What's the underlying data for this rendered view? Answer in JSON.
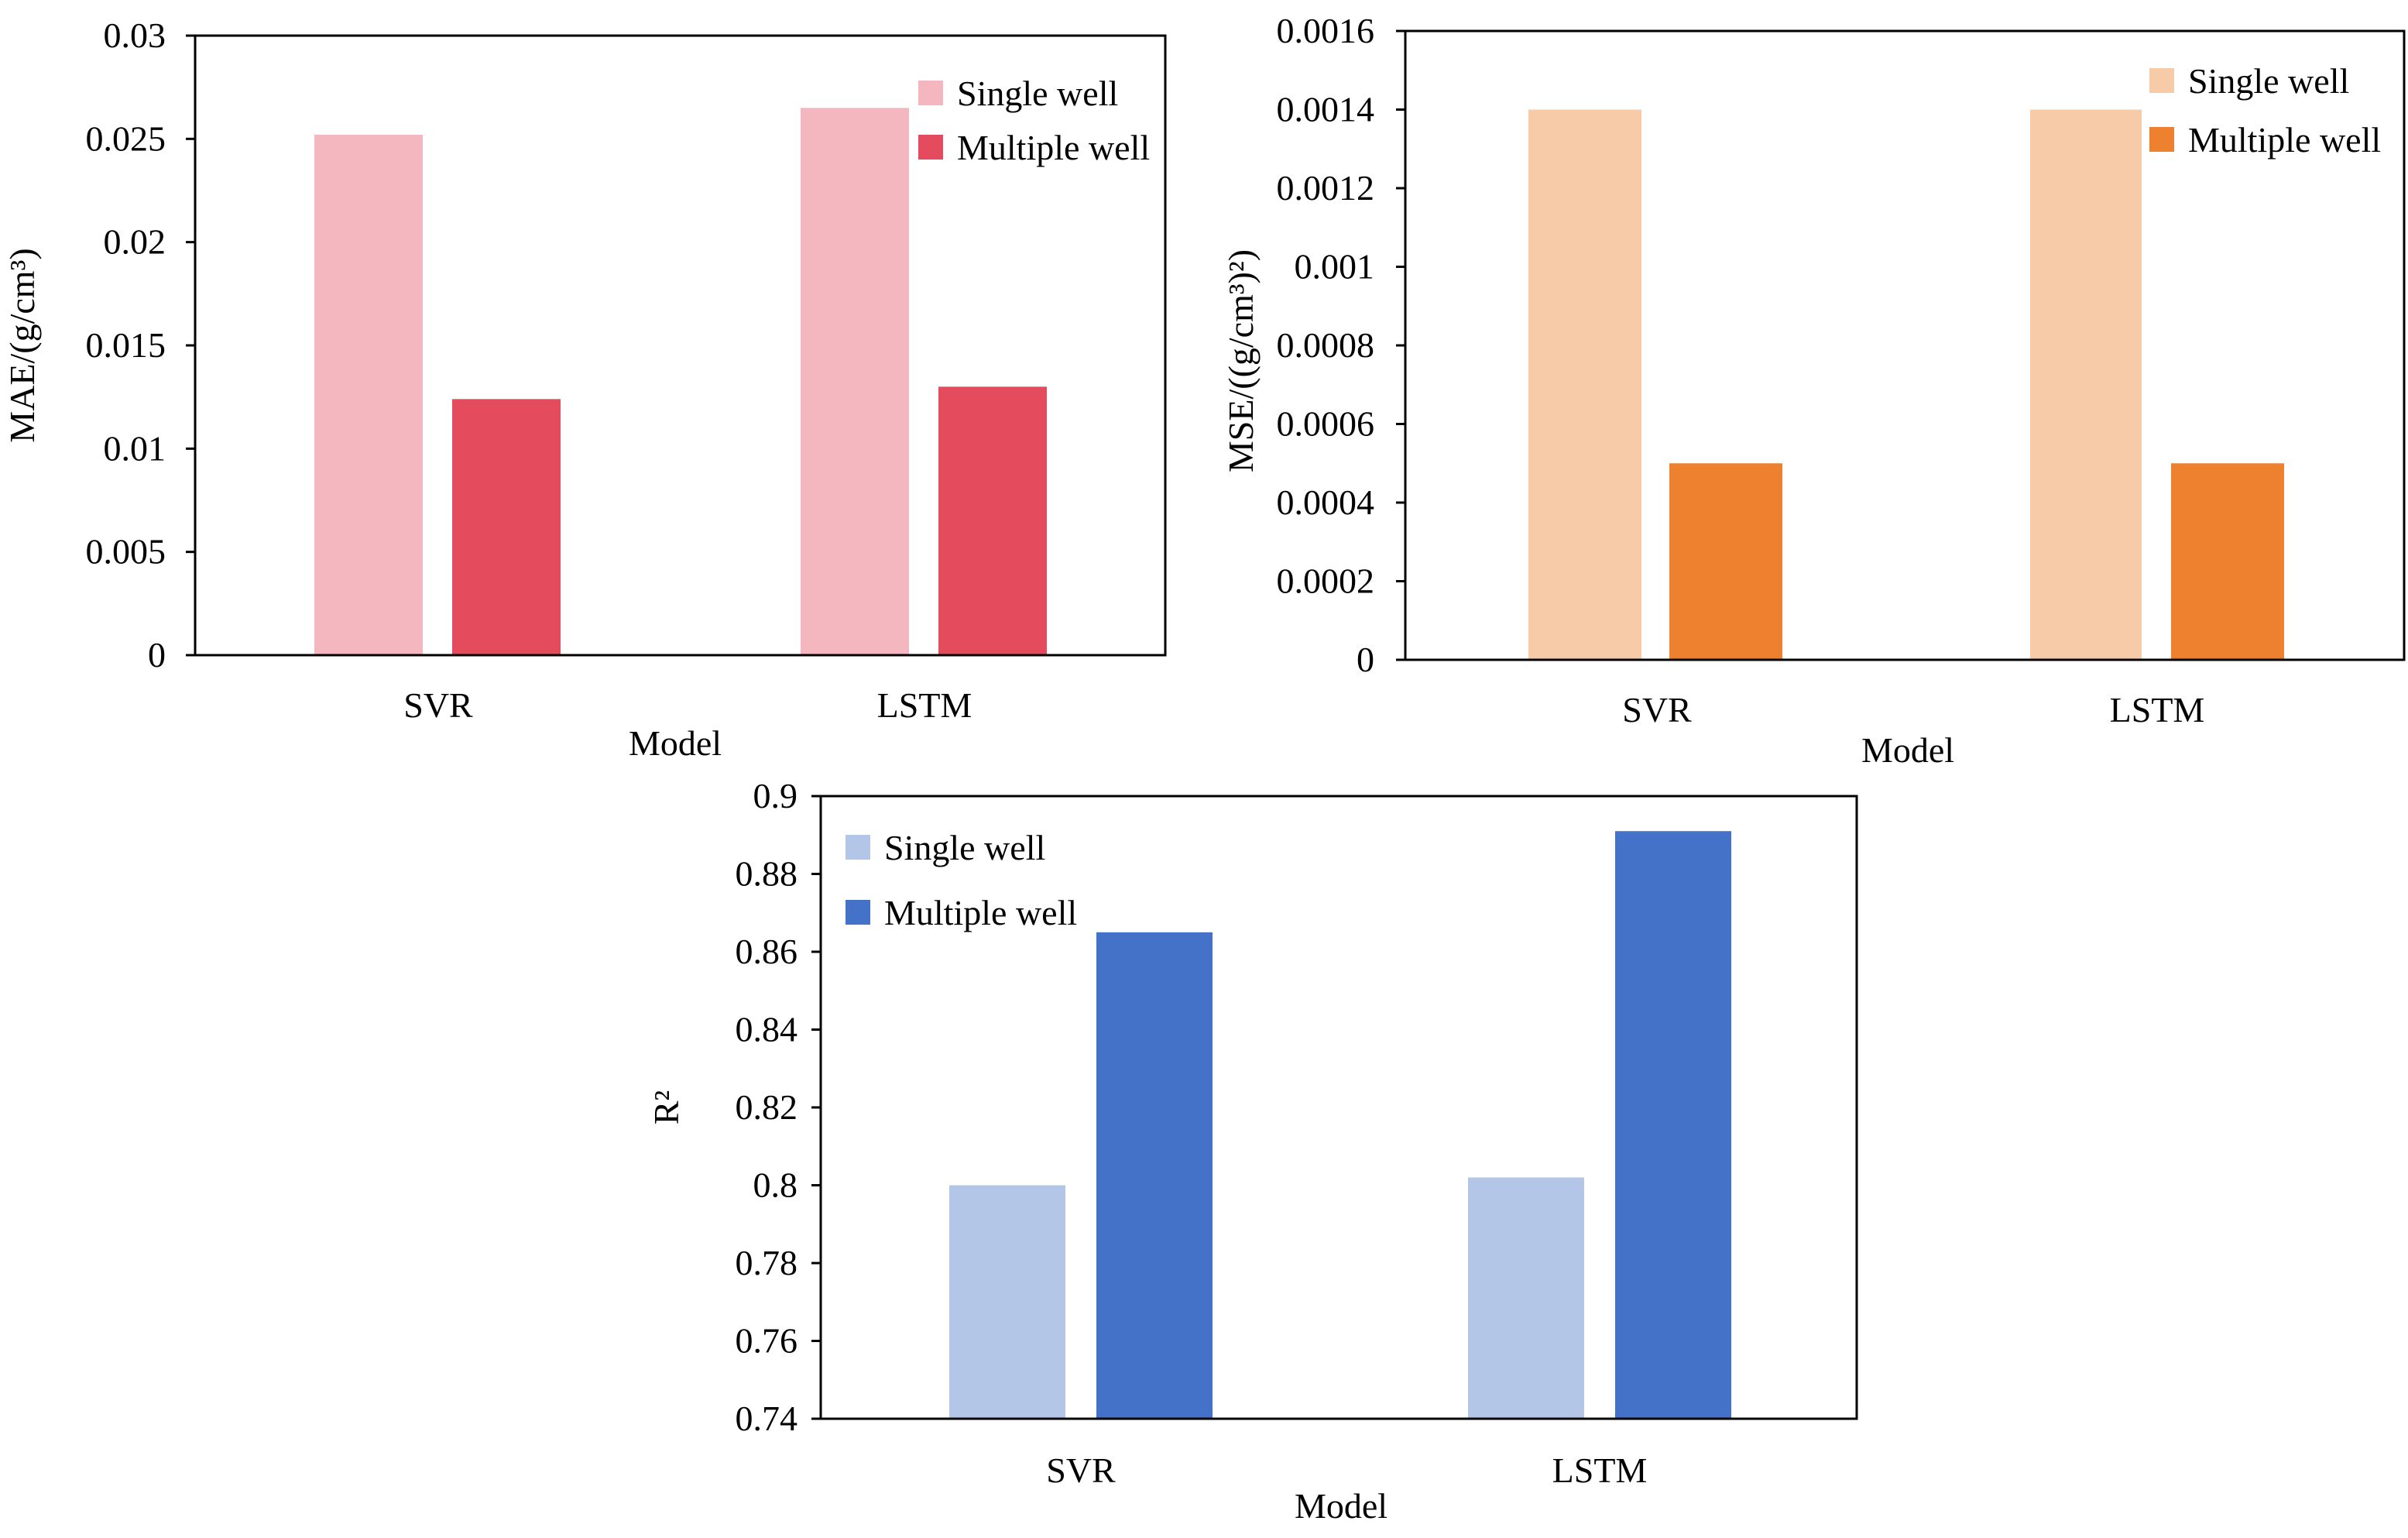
{
  "chart_data": [
    {
      "type": "bar",
      "categories": [
        "SVR",
        "LSTM"
      ],
      "series": [
        {
          "name": "Single well",
          "values": [
            0.0252,
            0.0265
          ],
          "color": "#f4b6bf"
        },
        {
          "name": "Multiple well",
          "values": [
            0.0124,
            0.013
          ],
          "color": "#e44b5d"
        }
      ],
      "xlabel": "Model",
      "ylabel": "MAE/(g/cm³)",
      "ylim": [
        0,
        0.03
      ],
      "yticks": [
        0,
        0.005,
        0.01,
        0.015,
        0.02,
        0.025,
        0.03
      ],
      "ytick_labels": [
        "0",
        "0.005",
        "0.01",
        "0.015",
        "0.02",
        "0.025",
        "0.03"
      ],
      "legend_position": "top-right",
      "grid": false
    },
    {
      "type": "bar",
      "categories": [
        "SVR",
        "LSTM"
      ],
      "series": [
        {
          "name": "Single well",
          "values": [
            0.0014,
            0.0014
          ],
          "color": "#f8cba8"
        },
        {
          "name": "Multiple well",
          "values": [
            0.0005,
            0.0005
          ],
          "color": "#ed8130"
        }
      ],
      "xlabel": "Model",
      "ylabel": "MSE/((g/cm³)²)",
      "ylim": [
        0,
        0.0016
      ],
      "yticks": [
        0,
        0.0002,
        0.0004,
        0.0006,
        0.0008,
        0.001,
        0.0012,
        0.0014,
        0.0016
      ],
      "ytick_labels": [
        "0",
        "0.0002",
        "0.0004",
        "0.0006",
        "0.0008",
        "0.001",
        "0.0012",
        "0.0014",
        "0.0016"
      ],
      "legend_position": "top-right",
      "grid": false
    },
    {
      "type": "bar",
      "categories": [
        "SVR",
        "LSTM"
      ],
      "series": [
        {
          "name": "Single well",
          "values": [
            0.8,
            0.802
          ],
          "color": "#b4c6e8"
        },
        {
          "name": "Multiple well",
          "values": [
            0.865,
            0.891
          ],
          "color": "#4472c8"
        }
      ],
      "xlabel": "Model",
      "ylabel": "R²",
      "ylim": [
        0.74,
        0.9
      ],
      "yticks": [
        0.74,
        0.76,
        0.78,
        0.8,
        0.82,
        0.84,
        0.86,
        0.88,
        0.9
      ],
      "ytick_labels": [
        "0.74",
        "0.76",
        "0.78",
        "0.8",
        "0.82",
        "0.84",
        "0.86",
        "0.88",
        "0.9"
      ],
      "legend_position": "top-left",
      "grid": false
    }
  ]
}
